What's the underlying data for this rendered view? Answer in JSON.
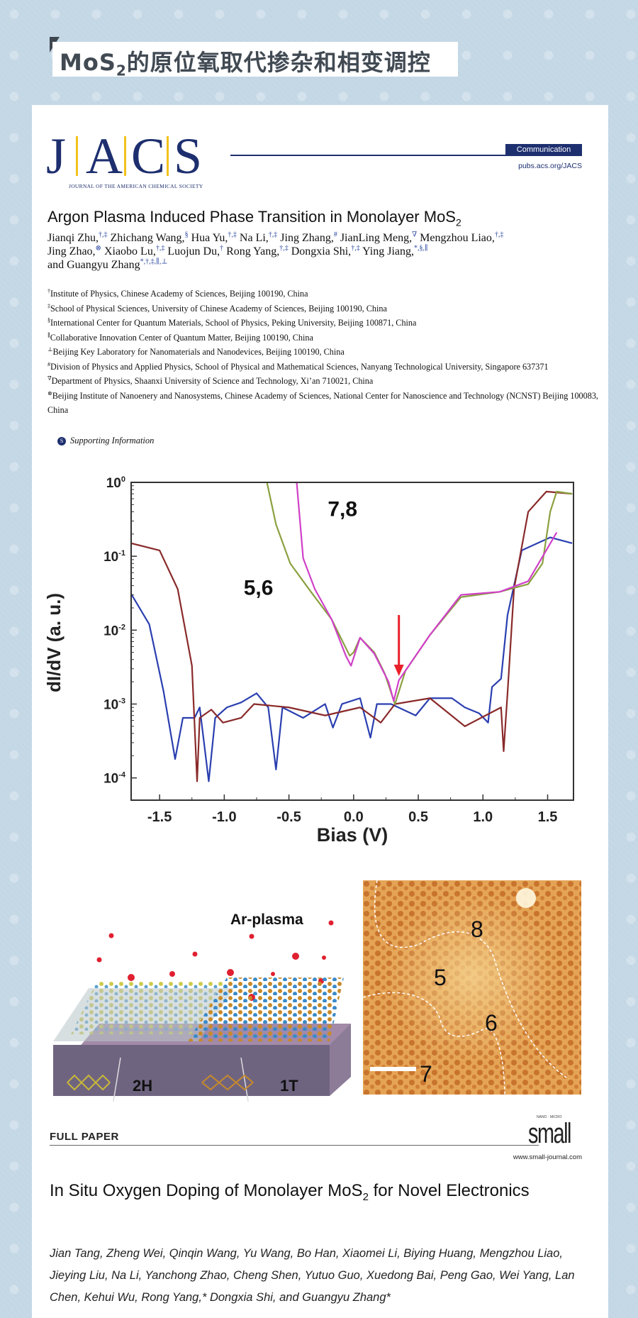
{
  "banner": {
    "title_prefix": "MoS",
    "title_sub": "2",
    "title_rest": "的原位氧取代掺杂和相变调控"
  },
  "jacs": {
    "logo_letters": [
      "J",
      "A",
      "C",
      "S"
    ],
    "logo_subtitle": "JOURNAL OF THE AMERICAN CHEMICAL SOCIETY",
    "badge": "Communication",
    "url": "pubs.acs.org/JACS",
    "title": "Argon Plasma Induced Phase Transition in Monolayer MoS",
    "title_sub": "2",
    "authors": [
      {
        "name": "Jianqi Zhu,",
        "sup": "†,‡"
      },
      {
        "name": "Zhichang Wang,",
        "sup": "§"
      },
      {
        "name": "Hua Yu,",
        "sup": "†,‡"
      },
      {
        "name": "Na Li,",
        "sup": "†,‡"
      },
      {
        "name": "Jing Zhang,",
        "sup": "#"
      },
      {
        "name": "JianLing Meng,",
        "sup": "∇"
      },
      {
        "name": "Mengzhou Liao,",
        "sup": "†,‡"
      },
      {
        "name": "Jing Zhao,",
        "sup": "⊗"
      },
      {
        "name": "Xiaobo Lu,",
        "sup": "†,‡"
      },
      {
        "name": "Luojun Du,",
        "sup": "†"
      },
      {
        "name": "Rong Yang,",
        "sup": "†,‡"
      },
      {
        "name": "Dongxia Shi,",
        "sup": "†,‡"
      },
      {
        "name": "Ying Jiang,",
        "sup": "*,§,∥"
      },
      {
        "name": "and Guangyu Zhang",
        "sup": "*,†,‡,∥,⊥"
      }
    ],
    "affiliations": [
      {
        "mark": "†",
        "text": "Institute of Physics, Chinese Academy of Sciences, Beijing 100190, China"
      },
      {
        "mark": "‡",
        "text": "School of Physical Sciences, University of Chinese Academy of Sciences, Beijing 100190, China"
      },
      {
        "mark": "§",
        "text": "International Center for Quantum Materials, School of Physics, Peking University, Beijing 100871, China"
      },
      {
        "mark": "∥",
        "text": "Collaborative Innovation Center of Quantum Matter, Beijing 100190, China"
      },
      {
        "mark": "⊥",
        "text": "Beijing Key Laboratory for Nanomaterials and Nanodevices, Beijing 100190, China"
      },
      {
        "mark": "#",
        "text": "Division of Physics and Applied Physics, School of Physical and Mathematical Sciences, Nanyang Technological University, Singapore 637371"
      },
      {
        "mark": "∇",
        "text": "Department of Physics, Shaanxi University of Science and Technology, Xi’an 710021, China"
      },
      {
        "mark": "⊗",
        "text": "Beijing Institute of Nanoenery and Nanosystems, Chinese Academy of Sciences, National Center for Nanoscience and Technology (NCNST) Beijing 100083, China"
      }
    ],
    "supporting_icon": "S",
    "supporting": "Supporting Information"
  },
  "chart_data": {
    "type": "line",
    "xlabel": "Bias (V)",
    "ylabel": "dI/dV (a. u.)",
    "xlim": [
      -1.72,
      1.7
    ],
    "ylim": [
      5e-05,
      1
    ],
    "yscale": "log",
    "xticks": [
      -1.5,
      -1.0,
      -0.5,
      0.0,
      0.5,
      1.0,
      1.5
    ],
    "xtick_labels": [
      "-1.5",
      "-1.0",
      "-0.5",
      "0.0",
      "0.5",
      "1.0",
      "1.5"
    ],
    "yticks": [
      1,
      0.1,
      0.01,
      0.001,
      0.0001
    ],
    "ytick_labels": [
      {
        "base": "10",
        "exp": "0"
      },
      {
        "base": "10",
        "exp": "-1"
      },
      {
        "base": "10",
        "exp": "-2"
      },
      {
        "base": "10",
        "exp": "-3"
      },
      {
        "base": "10",
        "exp": "-4"
      }
    ],
    "grid": false,
    "annotations": [
      {
        "text": "5,6",
        "x": -0.85,
        "y": 0.03
      },
      {
        "text": "7,8",
        "x": -0.2,
        "y": 0.35
      }
    ],
    "arrow": {
      "x": 0.35,
      "y_from": 0.016,
      "y_to": 0.0025,
      "color": "#e8202a"
    },
    "series": [
      {
        "color": "#2a3fb0",
        "points": [
          [
            -1.72,
            0.031
          ],
          [
            -1.58,
            0.012
          ],
          [
            -1.47,
            0.0015
          ],
          [
            -1.38,
            0.00018
          ],
          [
            -1.32,
            0.00065
          ],
          [
            -1.23,
            0.00065
          ],
          [
            -1.19,
            0.0009
          ],
          [
            -1.12,
            9e-05
          ],
          [
            -1.07,
            0.00065
          ],
          [
            -0.98,
            0.0009
          ],
          [
            -0.87,
            0.00105
          ],
          [
            -0.75,
            0.0014
          ],
          [
            -0.66,
            0.0009
          ],
          [
            -0.6,
            0.00013
          ],
          [
            -0.55,
            0.0009
          ],
          [
            -0.39,
            0.00065
          ],
          [
            -0.22,
            0.001
          ],
          [
            -0.16,
            0.00048
          ],
          [
            -0.09,
            0.001
          ],
          [
            0.05,
            0.0012
          ],
          [
            0.13,
            0.00035
          ],
          [
            0.18,
            0.001
          ],
          [
            0.29,
            0.001
          ],
          [
            0.48,
            0.0007
          ],
          [
            0.59,
            0.0012
          ],
          [
            0.76,
            0.0012
          ],
          [
            0.86,
            0.0009
          ],
          [
            0.97,
            0.00075
          ],
          [
            1.04,
            0.00056
          ],
          [
            1.07,
            0.0017
          ],
          [
            1.14,
            0.0022
          ],
          [
            1.19,
            0.016
          ],
          [
            1.3,
            0.12
          ],
          [
            1.52,
            0.18
          ],
          [
            1.69,
            0.15
          ]
        ]
      },
      {
        "color": "#8a2a2a",
        "points": [
          [
            -1.72,
            0.15
          ],
          [
            -1.5,
            0.12
          ],
          [
            -1.36,
            0.036
          ],
          [
            -1.25,
            0.0033
          ],
          [
            -1.21,
            9e-05
          ],
          [
            -1.19,
            0.00065
          ],
          [
            -1.1,
            0.00084
          ],
          [
            -1.01,
            0.00056
          ],
          [
            -0.87,
            0.00065
          ],
          [
            -0.77,
            0.001
          ],
          [
            -0.5,
            0.0009
          ],
          [
            -0.22,
            0.0007
          ],
          [
            0.05,
            0.0009
          ],
          [
            0.21,
            0.00056
          ],
          [
            0.32,
            0.001
          ],
          [
            0.59,
            0.0012
          ],
          [
            0.86,
            0.0005
          ],
          [
            1.14,
            0.0009
          ],
          [
            1.16,
            0.00023
          ],
          [
            1.19,
            0.0014
          ],
          [
            1.24,
            0.036
          ],
          [
            1.35,
            0.4
          ],
          [
            1.49,
            0.75
          ],
          [
            1.69,
            0.7
          ]
        ]
      },
      {
        "color": "#8aa040",
        "points": [
          [
            -0.67,
            1
          ],
          [
            -0.6,
            0.27
          ],
          [
            -0.49,
            0.08
          ],
          [
            -0.33,
            0.033
          ],
          [
            -0.17,
            0.014
          ],
          [
            -0.03,
            0.0045
          ],
          [
            0.0,
            0.005
          ],
          [
            0.05,
            0.0079
          ],
          [
            0.16,
            0.005
          ],
          [
            0.24,
            0.0026
          ],
          [
            0.32,
            0.001
          ],
          [
            0.4,
            0.0028
          ],
          [
            0.59,
            0.0086
          ],
          [
            0.83,
            0.028
          ],
          [
            1.13,
            0.033
          ],
          [
            1.35,
            0.042
          ],
          [
            1.46,
            0.08
          ],
          [
            1.52,
            0.4
          ],
          [
            1.57,
            0.75
          ],
          [
            1.69,
            0.7
          ]
        ]
      },
      {
        "color": "#d040c8",
        "points": [
          [
            -0.44,
            1
          ],
          [
            -0.39,
            0.094
          ],
          [
            -0.3,
            0.036
          ],
          [
            -0.17,
            0.014
          ],
          [
            -0.06,
            0.0045
          ],
          [
            -0.02,
            0.0033
          ],
          [
            0.05,
            0.0079
          ],
          [
            0.16,
            0.0048
          ],
          [
            0.27,
            0.002
          ],
          [
            0.31,
            0.0011
          ],
          [
            0.35,
            0.0021
          ],
          [
            0.59,
            0.0086
          ],
          [
            0.83,
            0.03
          ],
          [
            1.13,
            0.033
          ],
          [
            1.35,
            0.046
          ],
          [
            1.57,
            0.21
          ]
        ]
      }
    ]
  },
  "schematic": {
    "plasma_label": "Ar-plasma",
    "phase_2h": "2H",
    "phase_1t": "1T"
  },
  "stm": {
    "labels": [
      "8",
      "5",
      "6",
      "7"
    ]
  },
  "small_paper": {
    "section": "FULL PAPER",
    "journal_tag": "NANO · MICRO",
    "journal": "small",
    "url": "www.small-journal.com",
    "title": "In Situ Oxygen Doping of Monolayer MoS",
    "title_sub": "2",
    "title_rest": " for Novel Electronics",
    "authors": "Jian Tang, Zheng Wei, Qinqin Wang, Yu Wang, Bo Han, Xiaomei Li, Biying Huang, Mengzhou Liao, Jieying Liu, Na Li, Yanchong Zhao, Cheng Shen, Yutuo Guo, Xuedong Bai, Peng Gao, Wei Yang, Lan Chen, Kehui Wu, Rong Yang,* Dongxia Shi, and Guangyu Zhang*"
  }
}
